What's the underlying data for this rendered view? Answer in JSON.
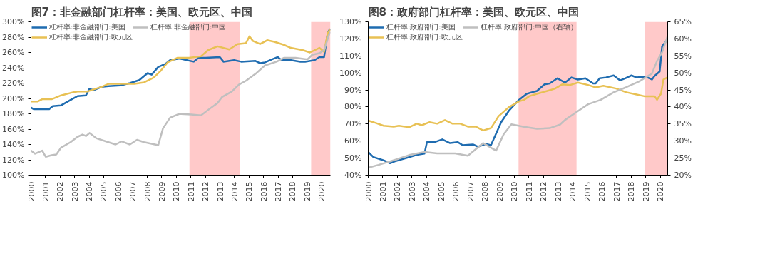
{
  "chart_data": [
    {
      "type": "line",
      "title": "图7：非金融部门杠杆率：美国、欧元区、中国",
      "legend": "top",
      "grid": false,
      "marker": "none",
      "line_style": "solid",
      "xlim": [
        2000,
        2020.6
      ],
      "xticks": [
        2000,
        2001,
        2002,
        2003,
        2004,
        2005,
        2006,
        2007,
        2008,
        2009,
        2010,
        2011,
        2012,
        2013,
        2014,
        2015,
        2016,
        2017,
        2018,
        2019,
        2020
      ],
      "ylim": [
        100,
        300
      ],
      "yticks": [
        {
          "value": 100,
          "label": "100%"
        },
        {
          "value": 120,
          "label": "120%"
        },
        {
          "value": 140,
          "label": "140%"
        },
        {
          "value": 160,
          "label": "160%"
        },
        {
          "value": 180,
          "label": "180%"
        },
        {
          "value": 200,
          "label": "200%"
        },
        {
          "value": 220,
          "label": "220%"
        },
        {
          "value": 240,
          "label": "240%"
        },
        {
          "value": 260,
          "label": "260%"
        },
        {
          "value": 280,
          "label": "280%"
        },
        {
          "value": 300,
          "label": "300%"
        }
      ],
      "bands": [
        {
          "axis": "x",
          "from": 2010.9,
          "to": 2014.35,
          "color": "#ffc9c9"
        },
        {
          "axis": "x",
          "from": 2019.27,
          "to": 2020.6,
          "color": "#ffc9c9"
        }
      ],
      "series": [
        {
          "name": "杠杆率:非金融部门:美国",
          "color": "#1f6cb0",
          "x": [
            2000.0,
            2000.2,
            2000.93,
            2001.25,
            2001.5,
            2002.07,
            2002.72,
            2003.2,
            2003.78,
            2004.0,
            2004.35,
            2004.84,
            2005.33,
            2006.15,
            2006.8,
            2007.45,
            2008.02,
            2008.3,
            2008.75,
            2009.24,
            2009.57,
            2010.22,
            2010.71,
            2011.2,
            2011.52,
            2012.01,
            2012.99,
            2013.24,
            2013.97,
            2014.46,
            2015.44,
            2015.76,
            2016.09,
            2016.58,
            2016.98,
            2017.23,
            2017.88,
            2018.53,
            2018.86,
            2019.51,
            2019.84,
            2020.16,
            2020.41,
            2020.57
          ],
          "values": [
            188,
            186,
            186,
            186,
            190,
            191,
            198,
            203,
            204,
            212,
            211,
            215,
            216,
            217,
            220,
            224,
            233,
            231,
            241,
            245,
            250,
            252,
            250,
            248,
            253,
            253,
            254,
            248,
            250,
            248,
            249,
            246,
            247,
            251,
            254,
            250,
            250,
            248,
            248,
            250,
            254,
            254,
            285,
            291
          ]
        },
        {
          "name": "杠杆率:非金融部门:欧元区",
          "color": "#e8c154",
          "x": [
            2000.0,
            2000.44,
            2000.77,
            2001.42,
            2002.07,
            2002.89,
            2003.2,
            2003.86,
            2004.35,
            2004.84,
            2005.33,
            2006.15,
            2007.12,
            2007.78,
            2008.43,
            2008.92,
            2009.4,
            2010.06,
            2010.87,
            2011.69,
            2012.18,
            2012.83,
            2013.64,
            2014.21,
            2014.78,
            2015.03,
            2015.27,
            2015.76,
            2016.25,
            2016.74,
            2017.39,
            2017.88,
            2018.7,
            2019.19,
            2019.84,
            2020.16,
            2020.41,
            2020.57
          ],
          "values": [
            196,
            196,
            199,
            199,
            204,
            208,
            209,
            209,
            212,
            215,
            219,
            219,
            219,
            221,
            227,
            236,
            247,
            253,
            253,
            255,
            263,
            268,
            264,
            271,
            272,
            281,
            275,
            271,
            276,
            274,
            270,
            266,
            263,
            260,
            266,
            261,
            285,
            290
          ]
        },
        {
          "name": "杠杆率:非金融部门:中国",
          "color": "#bfbfbf",
          "x": [
            2000.0,
            2000.28,
            2000.77,
            2001.01,
            2001.42,
            2001.74,
            2002.07,
            2002.72,
            2003.2,
            2003.54,
            2003.78,
            2004.03,
            2004.51,
            2005.17,
            2005.82,
            2006.23,
            2006.8,
            2007.29,
            2007.78,
            2008.75,
            2009.08,
            2009.57,
            2010.22,
            2011.03,
            2011.69,
            2012.18,
            2012.83,
            2013.15,
            2013.81,
            2014.3,
            2014.78,
            2015.44,
            2016.09,
            2016.9,
            2017.39,
            2018.2,
            2019.02,
            2019.35,
            2019.84,
            2020.16,
            2020.57
          ],
          "values": [
            132,
            128,
            132,
            124,
            126,
            127,
            136,
            143,
            150,
            153,
            151,
            155,
            148,
            144,
            140,
            144,
            140,
            146,
            143,
            139,
            161,
            175,
            180,
            179,
            178,
            185,
            194,
            202,
            209,
            218,
            223,
            232,
            243,
            248,
            253,
            253,
            251,
            257,
            259,
            263,
            287
          ]
        }
      ]
    },
    {
      "type": "line",
      "title": "图8：政府部门杠杆率：美国、欧元区、中国",
      "legend": "top",
      "grid": false,
      "marker": "none",
      "line_style": "solid",
      "xlim": [
        2000,
        2020.5
      ],
      "xticks": [
        2000,
        2001,
        2002,
        2003,
        2004,
        2005,
        2006,
        2007,
        2008,
        2009,
        2010,
        2011,
        2012,
        2013,
        2014,
        2015,
        2016,
        2017,
        2018,
        2019,
        2020
      ],
      "ylim": [
        40,
        130
      ],
      "yticks": [
        {
          "value": 40,
          "label": "40%"
        },
        {
          "value": 50,
          "label": "50%"
        },
        {
          "value": 60,
          "label": "60%"
        },
        {
          "value": 70,
          "label": "70%"
        },
        {
          "value": 80,
          "label": "80%"
        },
        {
          "value": 90,
          "label": "90%"
        },
        {
          "value": 100,
          "label": "100%"
        },
        {
          "value": 110,
          "label": "110%"
        },
        {
          "value": 120,
          "label": "120%"
        },
        {
          "value": 130,
          "label": "130%"
        }
      ],
      "y2lim": [
        20,
        65
      ],
      "y2ticks": [
        {
          "value": 20,
          "label": "20%"
        },
        {
          "value": 25,
          "label": "25%"
        },
        {
          "value": 30,
          "label": "30%"
        },
        {
          "value": 35,
          "label": "35%"
        },
        {
          "value": 40,
          "label": "40%"
        },
        {
          "value": 45,
          "label": "45%"
        },
        {
          "value": 50,
          "label": "50%"
        },
        {
          "value": 55,
          "label": "55%"
        },
        {
          "value": 60,
          "label": "60%"
        },
        {
          "value": 65,
          "label": "65%"
        }
      ],
      "bands": [
        {
          "axis": "x",
          "from": 2010.29,
          "to": 2014.26,
          "color": "#ffc9c9"
        },
        {
          "axis": "x",
          "from": 2018.93,
          "to": 2020.5,
          "color": "#ffc9c9"
        }
      ],
      "series": [
        {
          "name": "杠杆率:政府部门:美国",
          "color": "#1f6cb0",
          "x": [
            2000.0,
            2000.35,
            2001.05,
            2001.49,
            2001.92,
            2002.8,
            2003.32,
            2003.85,
            2004.02,
            2004.55,
            2005.07,
            2005.6,
            2006.12,
            2006.47,
            2007.17,
            2007.52,
            2008.05,
            2008.4,
            2009.1,
            2009.62,
            2010.32,
            2010.85,
            2011.2,
            2011.55,
            2012.07,
            2012.42,
            2012.95,
            2013.47,
            2013.91,
            2014.35,
            2014.87,
            2015.4,
            2015.57,
            2015.84,
            2016.27,
            2016.8,
            2017.24,
            2017.59,
            2018.02,
            2018.37,
            2018.99,
            2019.42,
            2019.6,
            2019.95,
            2020.12,
            2020.47
          ],
          "values": [
            53.6,
            50.6,
            48.7,
            47,
            48.4,
            50.6,
            51.9,
            52.7,
            59.4,
            59.4,
            61,
            58.8,
            59.4,
            57.6,
            58,
            56.7,
            58.3,
            57.6,
            71.1,
            77.7,
            84.2,
            87.7,
            88.6,
            89.4,
            93.3,
            93.8,
            96.8,
            94.3,
            97.3,
            96.1,
            96.8,
            93.8,
            93.8,
            96.8,
            97.3,
            98.5,
            95.6,
            96.8,
            98.5,
            97.3,
            97.8,
            96.1,
            98.2,
            100.8,
            115.7,
            119.5
          ]
        },
        {
          "name": "杠杆率:政府部门:欧元区",
          "color": "#e8c154",
          "x": [
            2000.0,
            2000.52,
            2001.05,
            2001.75,
            2002.1,
            2002.8,
            2003.32,
            2003.67,
            2004.2,
            2004.72,
            2005.25,
            2005.77,
            2006.3,
            2006.82,
            2007.35,
            2007.87,
            2008.4,
            2008.92,
            2009.62,
            2010.32,
            2010.67,
            2011.02,
            2011.55,
            2012.25,
            2012.77,
            2013.3,
            2013.82,
            2014.35,
            2015.05,
            2015.57,
            2016.1,
            2016.97,
            2017.67,
            2018.37,
            2018.9,
            2019.6,
            2019.77,
            2020.04,
            2020.21,
            2020.47
          ],
          "values": [
            72,
            70.6,
            69,
            68.5,
            69,
            68.1,
            70.2,
            69.3,
            71.1,
            70.2,
            72.3,
            70.2,
            70.2,
            68.5,
            68.5,
            66.2,
            67.6,
            74.6,
            79.8,
            83.3,
            84.2,
            86.3,
            87.7,
            89.4,
            90.7,
            93.3,
            92.9,
            94.3,
            92.9,
            91.5,
            92.4,
            90.8,
            88.6,
            87.3,
            86.3,
            86.3,
            84.2,
            87.7,
            96.1,
            97.3
          ]
        },
        {
          "name": "杠杆率:政府部门:中国（右轴）",
          "color": "#bfbfbf",
          "axis": "y2",
          "x": [
            2000.0,
            2000.7,
            2001.22,
            2001.92,
            2002.8,
            2003.85,
            2004.72,
            2005.95,
            2006.82,
            2007.87,
            2008.75,
            2009.27,
            2009.8,
            2010.67,
            2011.55,
            2012.42,
            2013.12,
            2013.47,
            2014.35,
            2015.05,
            2015.92,
            2016.8,
            2017.67,
            2018.55,
            2019.42,
            2019.77,
            2020.12,
            2020.5
          ],
          "values": [
            22.2,
            23,
            23.7,
            24.6,
            25.9,
            26.8,
            26.4,
            26.4,
            25.7,
            29.4,
            27.2,
            32,
            34.9,
            34.2,
            33.6,
            33.8,
            34.8,
            36.2,
            38.8,
            40.8,
            42.1,
            44.3,
            45.8,
            47.5,
            49.8,
            53.5,
            56.1,
            60.9
          ]
        }
      ]
    }
  ]
}
